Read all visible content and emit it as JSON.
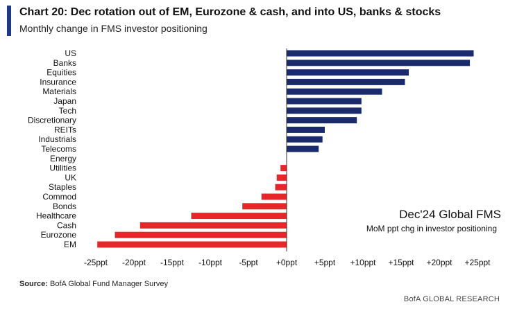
{
  "header": {
    "title": "Chart 20: Dec rotation out of EM, Eurozone & cash, and into US, banks & stocks",
    "subtitle": "Monthly change in FMS investor positioning"
  },
  "annotation": {
    "title": "Dec'24 Global FMS",
    "subtitle": "MoM ppt chg in investor positioning"
  },
  "footer": {
    "source_label": "Source:",
    "source_text": " BofA Global Fund Manager Survey",
    "branding": "BofA GLOBAL RESEARCH"
  },
  "colors": {
    "accent": "#1f3a8a",
    "positive": "#1a2a6c",
    "negative": "#e8262a"
  },
  "chart_data": {
    "type": "bar",
    "orientation": "horizontal",
    "title": "Chart 20: Dec rotation out of EM, Eurozone & cash, and into US, banks & stocks",
    "xlabel": "",
    "ylabel": "",
    "xlim": [
      -25,
      25
    ],
    "tick_values": [
      -25,
      -20,
      -15,
      -10,
      -5,
      0,
      5,
      10,
      15,
      20,
      25
    ],
    "tick_labels": [
      "-25ppt",
      "-20ppt",
      "-15ppt",
      "-10ppt",
      "-5ppt",
      "+0ppt",
      "+5ppt",
      "+10ppt",
      "+15ppt",
      "+20ppt",
      "+25ppt"
    ],
    "categories": [
      "US",
      "Banks",
      "Equities",
      "Insurance",
      "Materials",
      "Japan",
      "Tech",
      "Discretionary",
      "REITs",
      "Industrials",
      "Telecoms",
      "Energy",
      "Utilities",
      "UK",
      "Staples",
      "Commod",
      "Bonds",
      "Healthcare",
      "Cash",
      "Eurozone",
      "EM"
    ],
    "values": [
      24.5,
      24.0,
      16.0,
      15.5,
      12.5,
      9.8,
      9.8,
      9.2,
      5.0,
      4.7,
      4.2,
      0.0,
      -0.8,
      -1.3,
      -1.5,
      -3.3,
      -5.8,
      -12.5,
      -19.2,
      -22.5,
      -24.8
    ],
    "grid": false,
    "legend": "none"
  }
}
